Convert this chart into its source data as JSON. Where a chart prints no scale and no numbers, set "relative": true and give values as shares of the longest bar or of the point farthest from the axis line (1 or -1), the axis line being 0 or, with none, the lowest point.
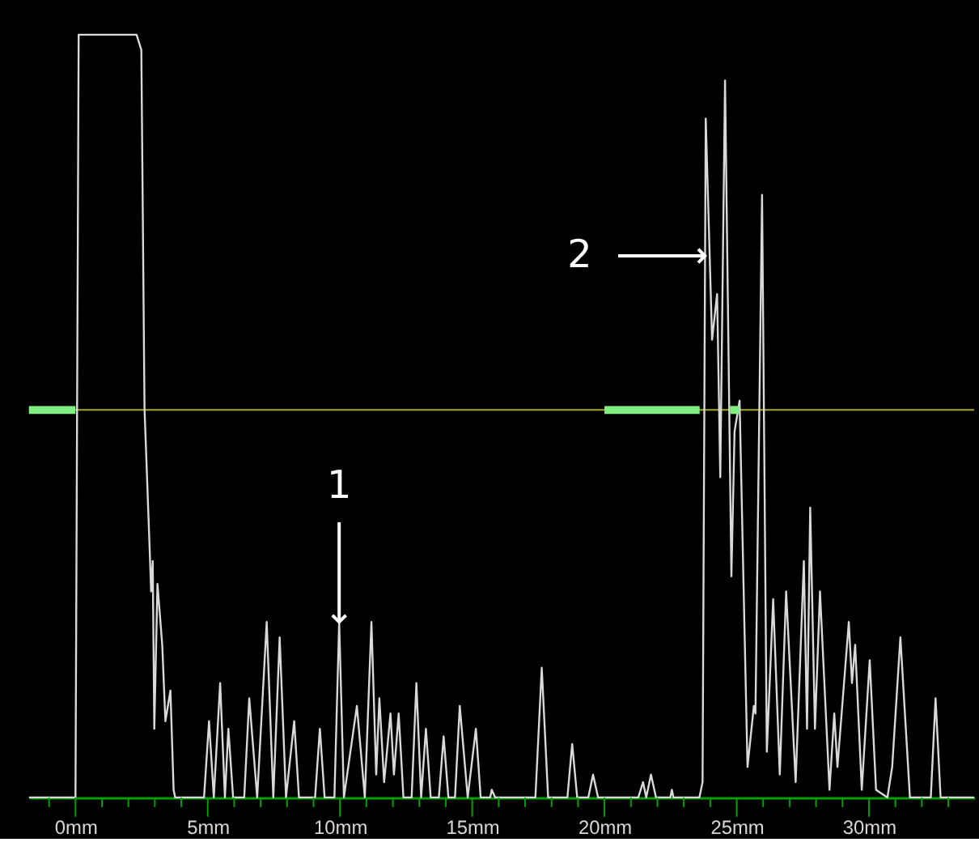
{
  "chart_data": {
    "type": "line",
    "relative": true,
    "x": [
      -1.76,
      0.0,
      0.12,
      2.31,
      2.49,
      2.61,
      2.8,
      2.86,
      2.92,
      2.98,
      3.1,
      3.28,
      3.4,
      3.59,
      3.71,
      3.77,
      4.86,
      5.05,
      5.23,
      5.47,
      5.65,
      5.78,
      5.96,
      6.38,
      6.57,
      6.87,
      7.23,
      7.48,
      7.72,
      7.96,
      8.27,
      8.45,
      9.06,
      9.24,
      9.42,
      9.79,
      9.97,
      10.15,
      10.64,
      10.94,
      11.19,
      11.37,
      11.49,
      11.67,
      11.91,
      12.04,
      12.22,
      12.4,
      12.71,
      12.89,
      13.07,
      13.25,
      13.43,
      13.74,
      13.92,
      14.1,
      14.35,
      14.53,
      14.83,
      15.14,
      15.32,
      15.68,
      15.74,
      15.87,
      17.39,
      17.63,
      17.87,
      18.6,
      18.78,
      18.97,
      19.39,
      19.57,
      19.76,
      21.28,
      21.46,
      21.58,
      21.76,
      21.95,
      22.49,
      22.55,
      22.61,
      23.59,
      23.71,
      23.83,
      24.07,
      24.26,
      24.38,
      24.56,
      24.8,
      24.92,
      25.11,
      25.29,
      25.41,
      25.65,
      25.71,
      25.96,
      26.14,
      26.38,
      26.63,
      26.87,
      27.23,
      27.54,
      27.66,
      27.78,
      27.96,
      28.15,
      28.51,
      28.69,
      28.81,
      29.24,
      29.36,
      29.48,
      29.73,
      30.03,
      30.27,
      30.7,
      30.88,
      31.19,
      31.55,
      32.34,
      32.52,
      32.71,
      33.98
    ],
    "series": [
      {
        "color": "#d9d9d9",
        "values": [
          0,
          0,
          1,
          1,
          0.98,
          0.51,
          0.33,
          0.27,
          0.31,
          0.09,
          0.28,
          0.2,
          0.1,
          0.14,
          0.01,
          0,
          0,
          0.1,
          0,
          0.15,
          0,
          0.09,
          0,
          0,
          0.13,
          0,
          0.23,
          0,
          0.21,
          0,
          0.1,
          0,
          0,
          0.09,
          0,
          0,
          0.23,
          0,
          0.12,
          0,
          0.23,
          0.03,
          0.13,
          0.02,
          0.11,
          0.03,
          0.11,
          0,
          0,
          0.15,
          0,
          0.09,
          0,
          0,
          0.08,
          0,
          0,
          0.12,
          0,
          0.09,
          0,
          0,
          0.01,
          0,
          0,
          0.17,
          0,
          0,
          0.07,
          0,
          0,
          0.03,
          0,
          0,
          0.02,
          0,
          0.03,
          0,
          0,
          0.01,
          0,
          0,
          0.02,
          0.89,
          0.6,
          0.66,
          0.42,
          0.94,
          0.29,
          0.48,
          0.52,
          0.23,
          0.04,
          0.12,
          0.11,
          0.79,
          0.06,
          0.26,
          0.03,
          0.27,
          0.02,
          0.31,
          0.09,
          0.38,
          0.09,
          0.27,
          0.01,
          0.11,
          0.04,
          0.23,
          0.15,
          0.2,
          0.01,
          0.18,
          0.01,
          0,
          0.04,
          0.21,
          0,
          0,
          0.13,
          0,
          0
        ]
      },
      {
        "type": "line",
        "color": "#80ee80",
        "x": [
          -1.76,
          0.0
        ],
        "values": [
          0.508,
          0.508
        ]
      },
      {
        "type": "line",
        "color": "#80ee80",
        "x": [
          20.0,
          23.6
        ],
        "values": [
          0.508,
          0.508
        ]
      },
      {
        "type": "line",
        "color": "#80ee80",
        "x": [
          24.75,
          25.1
        ],
        "values": [
          0.508,
          0.508
        ]
      }
    ],
    "xlim": [
      -1.76,
      33.98
    ],
    "xticks": [
      {
        "value": -1,
        "label": null
      },
      {
        "value": 0,
        "label": "0mm"
      },
      {
        "value": 1,
        "label": null
      },
      {
        "value": 2,
        "label": null
      },
      {
        "value": 3,
        "label": null
      },
      {
        "value": 4,
        "label": null
      },
      {
        "value": 5,
        "label": "5mm"
      },
      {
        "value": 6,
        "label": null
      },
      {
        "value": 7,
        "label": null
      },
      {
        "value": 8,
        "label": null
      },
      {
        "value": 9,
        "label": null
      },
      {
        "value": 10,
        "label": "10mm"
      },
      {
        "value": 11,
        "label": null
      },
      {
        "value": 12,
        "label": null
      },
      {
        "value": 13,
        "label": null
      },
      {
        "value": 14,
        "label": null
      },
      {
        "value": 15,
        "label": "15mm"
      },
      {
        "value": 16,
        "label": null
      },
      {
        "value": 17,
        "label": null
      },
      {
        "value": 18,
        "label": null
      },
      {
        "value": 19,
        "label": null
      },
      {
        "value": 20,
        "label": "20mm"
      },
      {
        "value": 21,
        "label": null
      },
      {
        "value": 22,
        "label": null
      },
      {
        "value": 23,
        "label": null
      },
      {
        "value": 24,
        "label": null
      },
      {
        "value": 25,
        "label": "25mm"
      },
      {
        "value": 26,
        "label": null
      },
      {
        "value": 27,
        "label": null
      },
      {
        "value": 28,
        "label": null
      },
      {
        "value": 29,
        "label": null
      },
      {
        "value": 30,
        "label": "30mm"
      },
      {
        "value": 31,
        "label": null
      },
      {
        "value": 32,
        "label": null
      },
      {
        "value": 33,
        "label": null
      }
    ],
    "ref_lines": [
      {
        "axis": "y",
        "value": 0.508,
        "color": "#a8a820"
      }
    ],
    "annotations": [
      {
        "text": "1",
        "x": 9.97,
        "y": 0.23
      },
      {
        "text": "2",
        "x": 23.8,
        "y": 0.71
      }
    ],
    "grid": false,
    "tick_labels": "x",
    "marker": "none",
    "line_style": "solid"
  }
}
